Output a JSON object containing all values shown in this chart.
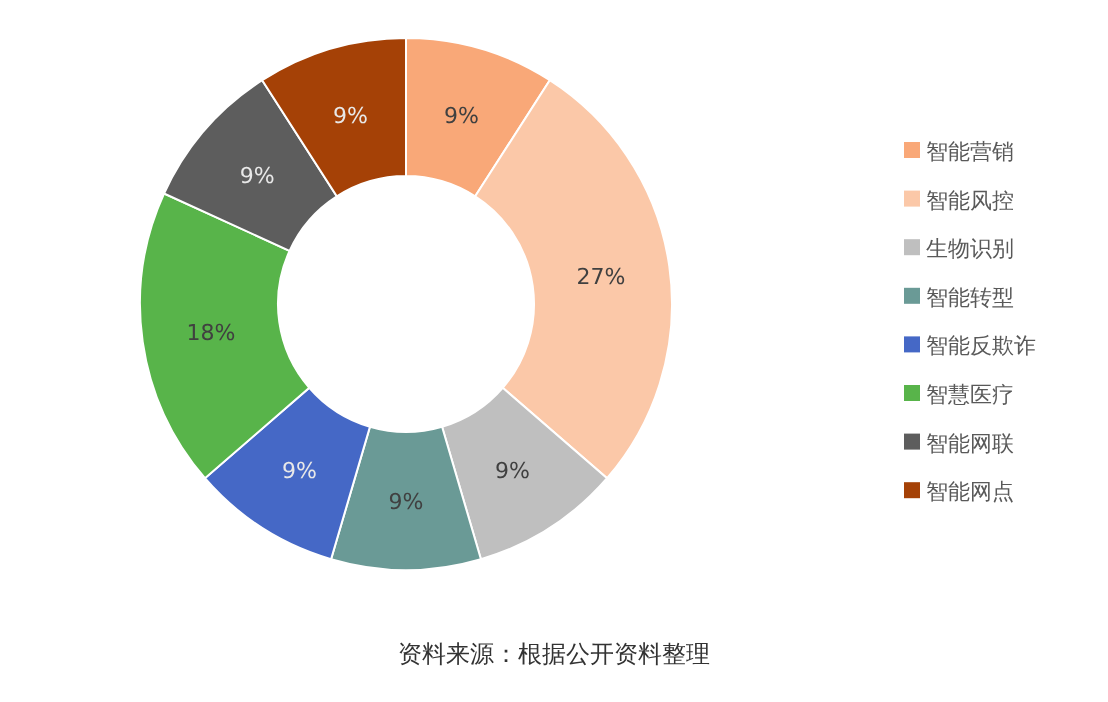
{
  "chart_data": {
    "type": "donut",
    "categories": [
      "智能营销",
      "智能风控",
      "生物识别",
      "智能转型",
      "智能反欺诈",
      "智慧医疗",
      "智能网联",
      "智能网点"
    ],
    "values": [
      9,
      27,
      9,
      9,
      9,
      18,
      9,
      9
    ],
    "colors": [
      "#f9a878",
      "#fbc8a8",
      "#bfbfbf",
      "#6a9a96",
      "#4568c6",
      "#58b44a",
      "#5d5d5d",
      "#a54106"
    ],
    "value_labels": [
      "9%",
      "27%",
      "9%",
      "9%",
      "9%",
      "18%",
      "9%",
      "9%"
    ],
    "legend": "right",
    "annotations": [
      "资料来源：根据公开资料整理"
    ]
  }
}
